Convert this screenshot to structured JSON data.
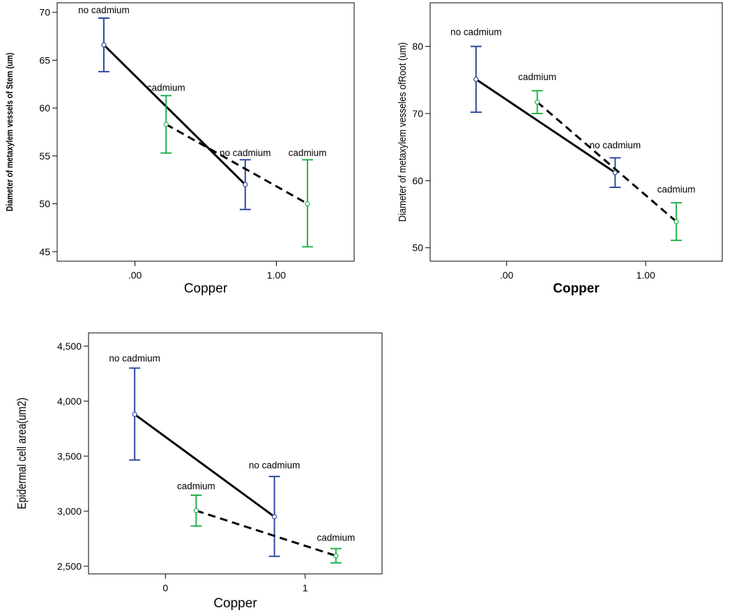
{
  "chart_data": [
    {
      "type": "line",
      "xlabel": "Copper",
      "ylabel": "Diameter of metaxylem vessels of Stem (um)",
      "x_ticks": [
        ".00",
        "1.00"
      ],
      "y_ticks": [
        "45",
        "50",
        "55",
        "60",
        "65",
        "70"
      ],
      "ylim": [
        44,
        71
      ],
      "xlim": [
        -0.55,
        1.55
      ],
      "grid": false,
      "series": [
        {
          "name": "no cadmium",
          "color": "#2e4a9e",
          "line": "solid",
          "x": [
            -0.22,
            0.78
          ],
          "y": [
            66.6,
            52.0
          ],
          "err_low": [
            63.8,
            49.4
          ],
          "err_high": [
            69.4,
            54.6
          ]
        },
        {
          "name": "cadmium",
          "color": "#22b24c",
          "line": "dashed",
          "x": [
            0.22,
            1.22
          ],
          "y": [
            58.3,
            50.0
          ],
          "err_low": [
            55.3,
            45.5
          ],
          "err_high": [
            61.3,
            54.6
          ]
        }
      ],
      "annotations": [
        {
          "text": "no cadmium",
          "x": -0.22,
          "y": 69.9
        },
        {
          "text": "cadmium",
          "x": 0.22,
          "y": 61.8
        },
        {
          "text": "no cadmium",
          "x": 0.78,
          "y": 55.0
        },
        {
          "text": "cadmium",
          "x": 1.22,
          "y": 55.0
        }
      ]
    },
    {
      "type": "line",
      "xlabel": "Copper",
      "ylabel": "Diameter of metaxylem vesseles ofRoot (um)",
      "x_ticks": [
        ".00",
        "1.00"
      ],
      "y_ticks": [
        "50",
        "60",
        "70",
        "80"
      ],
      "ylim": [
        48,
        86.5
      ],
      "xlim": [
        -0.55,
        1.55
      ],
      "grid": false,
      "series": [
        {
          "name": "no cadmium",
          "color": "#2e4a9e",
          "line": "solid",
          "x": [
            -0.22,
            0.78
          ],
          "y": [
            75.1,
            61.2
          ],
          "err_low": [
            70.2,
            59.0
          ],
          "err_high": [
            80.0,
            63.4
          ]
        },
        {
          "name": "cadmium",
          "color": "#22b24c",
          "line": "dashed",
          "x": [
            0.22,
            1.22
          ],
          "y": [
            71.7,
            53.9
          ],
          "err_low": [
            70.0,
            51.1
          ],
          "err_high": [
            73.4,
            56.7
          ]
        }
      ],
      "annotations": [
        {
          "text": "no cadmium",
          "x": -0.22,
          "y": 81.7
        },
        {
          "text": "cadmium",
          "x": 0.22,
          "y": 75.0
        },
        {
          "text": "no cadmium",
          "x": 0.78,
          "y": 64.8
        },
        {
          "text": "cadmium",
          "x": 1.22,
          "y": 58.2
        }
      ]
    },
    {
      "type": "line",
      "xlabel": "Copper",
      "ylabel": "Epidermal cell area(um2)",
      "x_ticks": [
        "0",
        "1"
      ],
      "y_ticks": [
        "2,500",
        "3,000",
        "3,500",
        "4,000",
        "4,500"
      ],
      "ylim": [
        2430,
        4620
      ],
      "xlim": [
        -0.55,
        1.55
      ],
      "grid": false,
      "series": [
        {
          "name": "no cadmium",
          "color": "#2e4a9e",
          "line": "solid",
          "x": [
            -0.22,
            0.78
          ],
          "y": [
            3880,
            2950
          ],
          "err_low": [
            3465,
            2590
          ],
          "err_high": [
            4300,
            3315
          ]
        },
        {
          "name": "cadmium",
          "color": "#22b24c",
          "line": "dashed",
          "x": [
            0.22,
            1.22
          ],
          "y": [
            3005,
            2595
          ],
          "err_low": [
            2865,
            2530
          ],
          "err_high": [
            3145,
            2660
          ]
        }
      ],
      "annotations": [
        {
          "text": "no cadmium",
          "x": -0.22,
          "y": 4360
        },
        {
          "text": "cadmium",
          "x": 0.22,
          "y": 3200
        },
        {
          "text": "no cadmium",
          "x": 0.78,
          "y": 3390
        },
        {
          "text": "cadmium",
          "x": 1.22,
          "y": 2730
        }
      ]
    }
  ]
}
